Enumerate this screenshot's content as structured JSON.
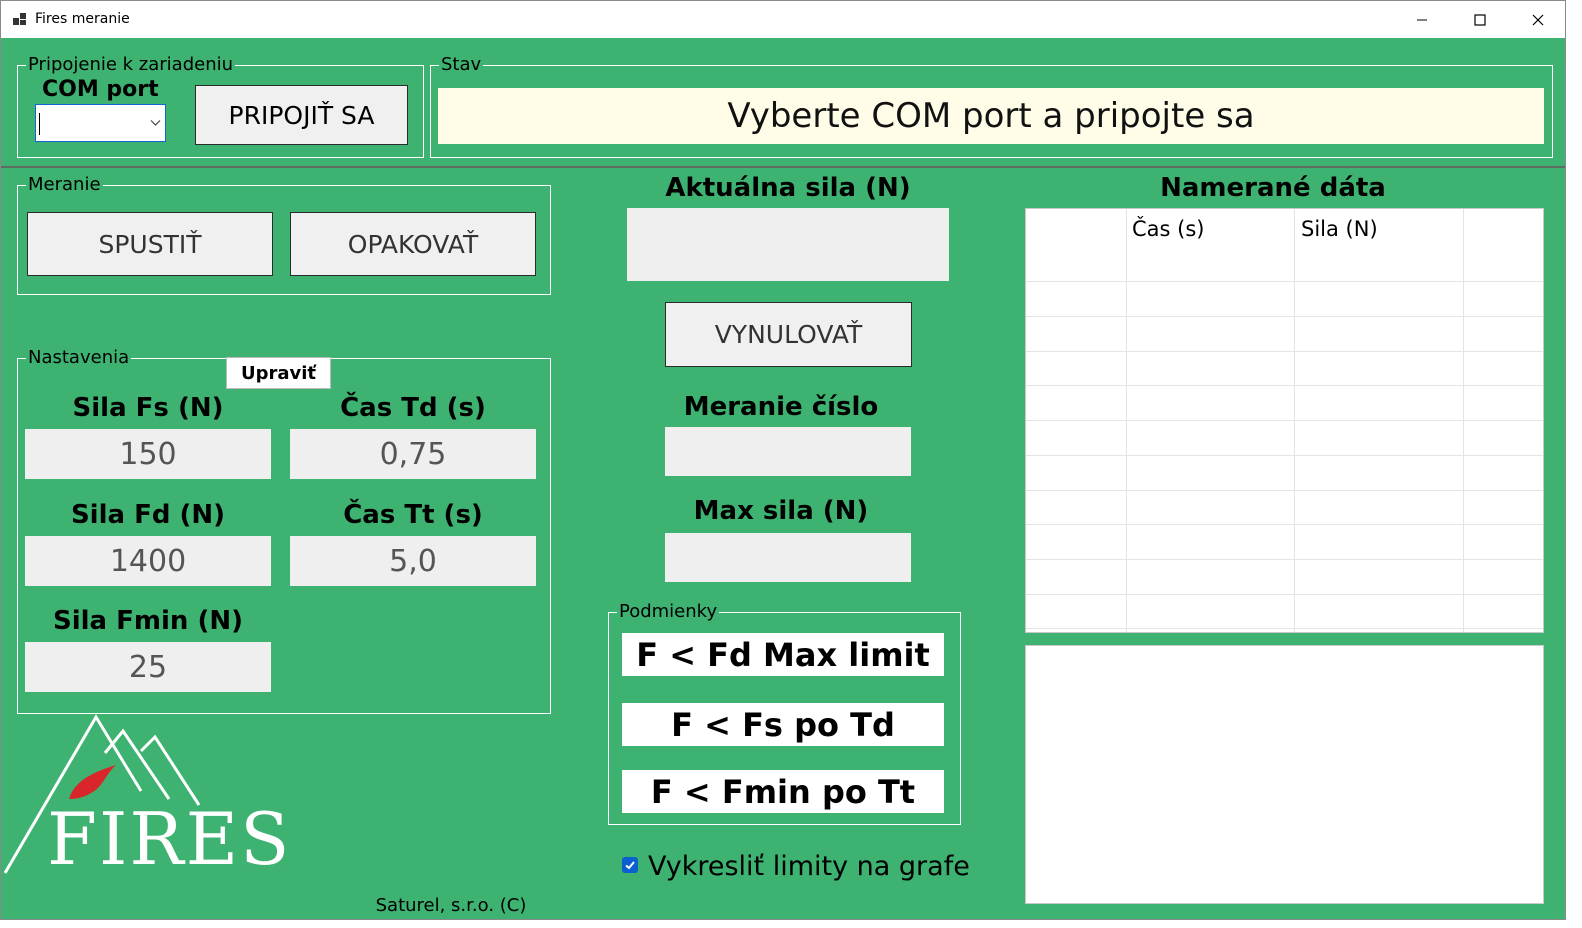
{
  "window": {
    "title": "Fires meranie"
  },
  "connection": {
    "group_label": "Pripojenie k zariadeniu",
    "com_label": "COM port",
    "com_value": "",
    "connect_button": "PRIPOJIŤ SA"
  },
  "status": {
    "group_label": "Stav",
    "message": "Vyberte COM port a pripojte sa"
  },
  "measurement": {
    "group_label": "Meranie",
    "start_button": "SPUSTIŤ",
    "repeat_button": "OPAKOVAŤ"
  },
  "settings": {
    "group_label": "Nastavenia",
    "edit_button": "Upraviť",
    "fs_label": "Sila Fs (N)",
    "fs_value": "150",
    "td_label": "Čas Td (s)",
    "td_value": "0,75",
    "fd_label": "Sila Fd (N)",
    "fd_value": "1400",
    "tt_label": "Čas Tt (s)",
    "tt_value": "5,0",
    "fmin_label": "Sila Fmin (N)",
    "fmin_value": "25"
  },
  "live": {
    "current_force_label": "Aktuálna sila (N)",
    "current_force_value": "",
    "reset_button": "VYNULOVAŤ",
    "measurement_number_label": "Meranie číslo",
    "measurement_number_value": "",
    "max_force_label": "Max sila (N)",
    "max_force_value": ""
  },
  "conditions": {
    "group_label": "Podmienky",
    "items": [
      "F < Fd Max limit",
      "F < Fs po Td",
      "F < Fmin po Tt"
    ]
  },
  "draw_limits": {
    "label": "Vykresliť limity na grafe",
    "checked": true
  },
  "data_table": {
    "title": "Namerané dáta",
    "columns": [
      "",
      "Čas (s)",
      "Sila (N)",
      ""
    ],
    "rows": []
  },
  "footer": {
    "copyright": "Saturel, s.r.o. (C)"
  },
  "logo": {
    "text": "FIRES"
  },
  "colors": {
    "background": "#3db271",
    "status_bg": "#fffde7",
    "flame": "#d8262b"
  }
}
